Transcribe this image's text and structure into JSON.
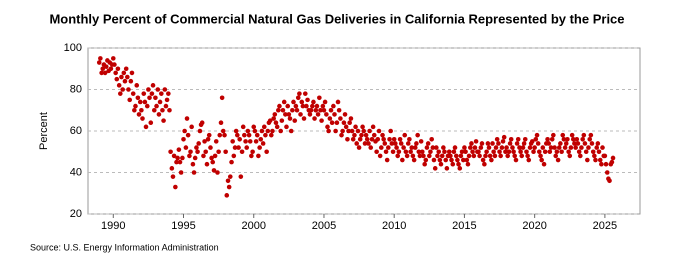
{
  "chart_data": {
    "type": "scatter",
    "title": "Monthly Percent of Commercial Natural Gas Deliveries in California Represented by the Price",
    "y_label": "Percent",
    "source": "Source: U.S. Energy Information Administration",
    "color": "#c00000",
    "xlim": [
      1988.2,
      2027.5
    ],
    "xticks": [
      1990,
      1995,
      2000,
      2005,
      2010,
      2015,
      2020,
      2025
    ],
    "ylim": [
      20,
      100
    ],
    "yticks": [
      20,
      40,
      60,
      80,
      100
    ],
    "grid": true,
    "x": [
      1989,
      1989.08,
      1989.17,
      1989.25,
      1989.33,
      1989.42,
      1989.5,
      1989.58,
      1989.67,
      1989.75,
      1989.83,
      1989.92,
      1990,
      1990.08,
      1990.17,
      1990.25,
      1990.33,
      1990.42,
      1990.5,
      1990.58,
      1990.67,
      1990.75,
      1990.83,
      1990.92,
      1991,
      1991.08,
      1991.17,
      1991.25,
      1991.33,
      1991.42,
      1991.5,
      1991.58,
      1991.67,
      1991.75,
      1991.83,
      1991.92,
      1992,
      1992.08,
      1992.17,
      1992.25,
      1992.33,
      1992.42,
      1992.5,
      1992.58,
      1992.67,
      1992.75,
      1992.83,
      1992.92,
      1993,
      1993.08,
      1993.17,
      1993.25,
      1993.33,
      1993.42,
      1993.5,
      1993.58,
      1993.67,
      1993.75,
      1993.83,
      1993.92,
      1994,
      1994.08,
      1994.17,
      1994.25,
      1994.33,
      1994.42,
      1994.5,
      1994.58,
      1994.67,
      1994.75,
      1994.83,
      1994.92,
      1995,
      1995.08,
      1995.17,
      1995.25,
      1995.33,
      1995.42,
      1995.5,
      1995.58,
      1995.67,
      1995.75,
      1995.83,
      1995.92,
      1996,
      1996.08,
      1996.17,
      1996.25,
      1996.33,
      1996.42,
      1996.5,
      1996.58,
      1996.67,
      1996.75,
      1996.83,
      1996.92,
      1997,
      1997.08,
      1997.17,
      1997.25,
      1997.33,
      1997.42,
      1997.5,
      1997.58,
      1997.67,
      1997.75,
      1997.83,
      1997.92,
      1998,
      1998.08,
      1998.17,
      1998.25,
      1998.33,
      1998.42,
      1998.5,
      1998.58,
      1998.67,
      1998.75,
      1998.83,
      1998.92,
      1999,
      1999.08,
      1999.17,
      1999.25,
      1999.33,
      1999.42,
      1999.5,
      1999.58,
      1999.67,
      1999.75,
      1999.83,
      1999.92,
      2000,
      2000.08,
      2000.17,
      2000.25,
      2000.33,
      2000.42,
      2000.5,
      2000.58,
      2000.67,
      2000.75,
      2000.83,
      2000.92,
      2001,
      2001.08,
      2001.17,
      2001.25,
      2001.33,
      2001.42,
      2001.5,
      2001.58,
      2001.67,
      2001.75,
      2001.83,
      2001.92,
      2002,
      2002.08,
      2002.17,
      2002.25,
      2002.33,
      2002.42,
      2002.5,
      2002.58,
      2002.67,
      2002.75,
      2002.83,
      2002.92,
      2003,
      2003.08,
      2003.17,
      2003.25,
      2003.33,
      2003.42,
      2003.5,
      2003.58,
      2003.67,
      2003.75,
      2003.83,
      2003.92,
      2004,
      2004.08,
      2004.17,
      2004.25,
      2004.33,
      2004.42,
      2004.5,
      2004.58,
      2004.67,
      2004.75,
      2004.83,
      2004.92,
      2005,
      2005.08,
      2005.17,
      2005.25,
      2005.33,
      2005.42,
      2005.5,
      2005.58,
      2005.67,
      2005.75,
      2005.83,
      2005.92,
      2006,
      2006.08,
      2006.17,
      2006.25,
      2006.33,
      2006.42,
      2006.5,
      2006.58,
      2006.67,
      2006.75,
      2006.83,
      2006.92,
      2007,
      2007.08,
      2007.17,
      2007.25,
      2007.33,
      2007.42,
      2007.5,
      2007.58,
      2007.67,
      2007.75,
      2007.83,
      2007.92,
      2008,
      2008.08,
      2008.17,
      2008.25,
      2008.33,
      2008.42,
      2008.5,
      2008.58,
      2008.67,
      2008.75,
      2008.83,
      2008.92,
      2009,
      2009.08,
      2009.17,
      2009.25,
      2009.33,
      2009.42,
      2009.5,
      2009.58,
      2009.67,
      2009.75,
      2009.83,
      2009.92,
      2010,
      2010.08,
      2010.17,
      2010.25,
      2010.33,
      2010.42,
      2010.5,
      2010.58,
      2010.67,
      2010.75,
      2010.83,
      2010.92,
      2011,
      2011.08,
      2011.17,
      2011.25,
      2011.33,
      2011.42,
      2011.5,
      2011.58,
      2011.67,
      2011.75,
      2011.83,
      2011.92,
      2012,
      2012.08,
      2012.17,
      2012.25,
      2012.33,
      2012.42,
      2012.5,
      2012.58,
      2012.67,
      2012.75,
      2012.83,
      2012.92,
      2013,
      2013.08,
      2013.17,
      2013.25,
      2013.33,
      2013.42,
      2013.5,
      2013.58,
      2013.67,
      2013.75,
      2013.83,
      2013.92,
      2014,
      2014.08,
      2014.17,
      2014.25,
      2014.33,
      2014.42,
      2014.5,
      2014.58,
      2014.67,
      2014.75,
      2014.83,
      2014.92,
      2015,
      2015.08,
      2015.17,
      2015.25,
      2015.33,
      2015.42,
      2015.5,
      2015.58,
      2015.67,
      2015.75,
      2015.83,
      2015.92,
      2016,
      2016.08,
      2016.17,
      2016.25,
      2016.33,
      2016.42,
      2016.5,
      2016.58,
      2016.67,
      2016.75,
      2016.83,
      2016.92,
      2017,
      2017.08,
      2017.17,
      2017.25,
      2017.33,
      2017.42,
      2017.5,
      2017.58,
      2017.67,
      2017.75,
      2017.83,
      2017.92,
      2018,
      2018.08,
      2018.17,
      2018.25,
      2018.33,
      2018.42,
      2018.5,
      2018.58,
      2018.67,
      2018.75,
      2018.83,
      2018.92,
      2019,
      2019.08,
      2019.17,
      2019.25,
      2019.33,
      2019.42,
      2019.5,
      2019.58,
      2019.67,
      2019.75,
      2019.83,
      2019.92,
      2020,
      2020.08,
      2020.17,
      2020.25,
      2020.33,
      2020.42,
      2020.5,
      2020.58,
      2020.67,
      2020.75,
      2020.83,
      2020.92,
      2021,
      2021.08,
      2021.17,
      2021.25,
      2021.33,
      2021.42,
      2021.5,
      2021.58,
      2021.67,
      2021.75,
      2021.83,
      2021.92,
      2022,
      2022.08,
      2022.17,
      2022.25,
      2022.33,
      2022.42,
      2022.5,
      2022.58,
      2022.67,
      2022.75,
      2022.83,
      2022.92,
      2023,
      2023.08,
      2023.17,
      2023.25,
      2023.33,
      2023.42,
      2023.5,
      2023.58,
      2023.67,
      2023.75,
      2023.83,
      2023.92,
      2024,
      2024.08,
      2024.17,
      2024.25,
      2024.33,
      2024.42,
      2024.5,
      2024.58,
      2024.67,
      2024.75,
      2024.83,
      2024.92,
      2025,
      2025.08,
      2025.17,
      2025.25,
      2025.33,
      2025.42,
      2025.5,
      2025.58
    ],
    "values": [
      93,
      95,
      88,
      90,
      92,
      88,
      91,
      94,
      89,
      93,
      90,
      92,
      95,
      92,
      88,
      85,
      90,
      82,
      78,
      86,
      80,
      88,
      84,
      90,
      86,
      80,
      75,
      84,
      88,
      78,
      70,
      72,
      82,
      76,
      68,
      74,
      70,
      66,
      78,
      74,
      62,
      72,
      80,
      76,
      64,
      78,
      82,
      70,
      76,
      72,
      80,
      68,
      74,
      78,
      70,
      65,
      80,
      72,
      75,
      78,
      70,
      50,
      42,
      38,
      48,
      33,
      45,
      47,
      51,
      45,
      40,
      47,
      56,
      60,
      52,
      66,
      58,
      48,
      50,
      62,
      44,
      40,
      47,
      52,
      50,
      54,
      60,
      63,
      64,
      48,
      55,
      50,
      44,
      56,
      58,
      52,
      47,
      45,
      41,
      48,
      55,
      40,
      50,
      58,
      64,
      76,
      60,
      58,
      50,
      29,
      36,
      33,
      38,
      45,
      55,
      48,
      52,
      60,
      58,
      52,
      56,
      38,
      50,
      62,
      58,
      55,
      52,
      60,
      58,
      55,
      48,
      50,
      62,
      60,
      55,
      58,
      48,
      52,
      56,
      60,
      54,
      62,
      58,
      50,
      60,
      64,
      65,
      58,
      60,
      66,
      68,
      64,
      62,
      70,
      72,
      60,
      65,
      70,
      74,
      68,
      62,
      72,
      68,
      66,
      60,
      70,
      74,
      65,
      72,
      70,
      76,
      78,
      68,
      74,
      72,
      66,
      78,
      72,
      75,
      70,
      68,
      70,
      72,
      74,
      66,
      70,
      72,
      68,
      76,
      70,
      65,
      72,
      70,
      74,
      68,
      62,
      60,
      66,
      70,
      64,
      72,
      68,
      60,
      64,
      74,
      70,
      66,
      58,
      60,
      64,
      68,
      62,
      56,
      60,
      64,
      66,
      60,
      56,
      58,
      62,
      54,
      60,
      52,
      56,
      58,
      62,
      60,
      54,
      58,
      56,
      54,
      60,
      52,
      56,
      62,
      58,
      55,
      50,
      56,
      60,
      48,
      52,
      58,
      56,
      54,
      50,
      46,
      52,
      56,
      60,
      54,
      50,
      56,
      54,
      52,
      48,
      50,
      56,
      54,
      46,
      52,
      58,
      50,
      48,
      54,
      56,
      50,
      52,
      48,
      46,
      52,
      54,
      58,
      50,
      48,
      55,
      50,
      48,
      44,
      46,
      52,
      54,
      48,
      50,
      56,
      52,
      46,
      42,
      52,
      48,
      50,
      46,
      44,
      48,
      52,
      50,
      46,
      42,
      48,
      50,
      48,
      46,
      44,
      50,
      52,
      48,
      46,
      44,
      42,
      48,
      50,
      46,
      52,
      50,
      46,
      44,
      48,
      52,
      54,
      50,
      48,
      52,
      55,
      50,
      50,
      48,
      52,
      54,
      46,
      44,
      48,
      50,
      54,
      52,
      48,
      46,
      54,
      50,
      48,
      52,
      56,
      54,
      50,
      48,
      52,
      55,
      57,
      50,
      52,
      48,
      50,
      54,
      56,
      52,
      50,
      48,
      46,
      54,
      56,
      52,
      50,
      48,
      52,
      54,
      56,
      50,
      48,
      46,
      52,
      54,
      55,
      50,
      52,
      56,
      58,
      54,
      50,
      48,
      46,
      52,
      44,
      50,
      54,
      56,
      54,
      50,
      52,
      56,
      58,
      52,
      48,
      50,
      46,
      52,
      54,
      50,
      58,
      56,
      52,
      54,
      56,
      50,
      48,
      52,
      58,
      56,
      54,
      52,
      56,
      54,
      50,
      48,
      52,
      56,
      58,
      54,
      50,
      46,
      52,
      56,
      58,
      54,
      50,
      48,
      46,
      52,
      54,
      50,
      46,
      44,
      52,
      48,
      48,
      44,
      40,
      37,
      36,
      44,
      45,
      47
    ]
  }
}
